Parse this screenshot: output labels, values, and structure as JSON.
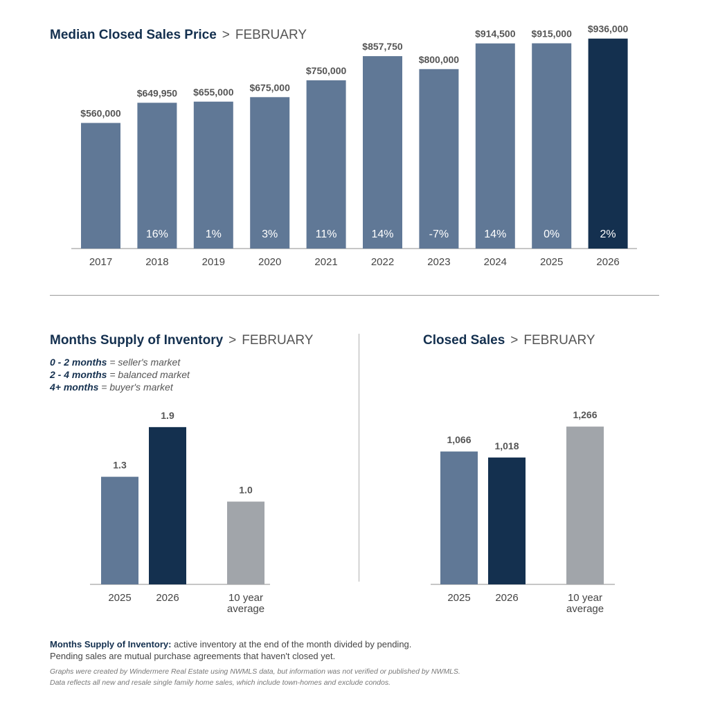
{
  "colors": {
    "prior": "#607896",
    "current": "#14304f",
    "average": "#a1a5aa",
    "title": "#14304f"
  },
  "price": {
    "title": "Median Closed Sales Price",
    "separator": ">",
    "month": "FEBRUARY"
  },
  "inventory": {
    "title": "Months Supply of Inventory",
    "separator": ">",
    "month": "FEBRUARY",
    "legend": [
      {
        "range": "0 - 2 months",
        "desc": " = seller's market"
      },
      {
        "range": "2 - 4 months",
        "desc": " = balanced market"
      },
      {
        "range": "4+ months",
        "desc": " = buyer's market"
      }
    ]
  },
  "sales": {
    "title": "Closed Sales",
    "separator": ">",
    "month": "FEBRUARY"
  },
  "footnote": {
    "label": "Months Supply of Inventory:",
    "text": " active inventory at the end of the month divided by pending.",
    "line2": "Pending sales are mutual purchase agreements that haven't closed yet."
  },
  "disclaimer": {
    "line1": "Graphs were created by Windermere Real Estate using NWMLS data, but information was not verified or published by NWMLS.",
    "line2": "Data reflects all new and resale single family home sales, which include town-homes and exclude condos."
  },
  "chart_data": [
    {
      "type": "bar",
      "title": "Median Closed Sales Price > FEBRUARY",
      "categories": [
        "2017",
        "2018",
        "2019",
        "2020",
        "2021",
        "2022",
        "2023",
        "2024",
        "2025",
        "2026"
      ],
      "values": [
        560000,
        649950,
        655000,
        675000,
        750000,
        857750,
        800000,
        914500,
        915000,
        936000
      ],
      "value_labels": [
        "$560,000",
        "$649,950",
        "$655,000",
        "$675,000",
        "$750,000",
        "$857,750",
        "$800,000",
        "$914,500",
        "$915,000",
        "$936,000"
      ],
      "change_labels": [
        "",
        "16%",
        "1%",
        "3%",
        "11%",
        "14%",
        "-7%",
        "14%",
        "0%",
        "2%"
      ],
      "highlight": "2026",
      "ylim": [
        0,
        1000000
      ]
    },
    {
      "type": "bar",
      "title": "Months Supply of Inventory > FEBRUARY",
      "categories": [
        "2025",
        "2026",
        "10 year average"
      ],
      "values": [
        1.3,
        1.9,
        1.0
      ],
      "value_labels": [
        "1.3",
        "1.9",
        "1.0"
      ],
      "ylim": [
        0,
        2.2
      ]
    },
    {
      "type": "bar",
      "title": "Closed Sales > FEBRUARY",
      "categories": [
        "2025",
        "2026",
        "10 year average"
      ],
      "values": [
        1066,
        1018,
        1266
      ],
      "value_labels": [
        "1,066",
        "1,018",
        "1,266"
      ],
      "ylim": [
        0,
        1500
      ]
    }
  ]
}
